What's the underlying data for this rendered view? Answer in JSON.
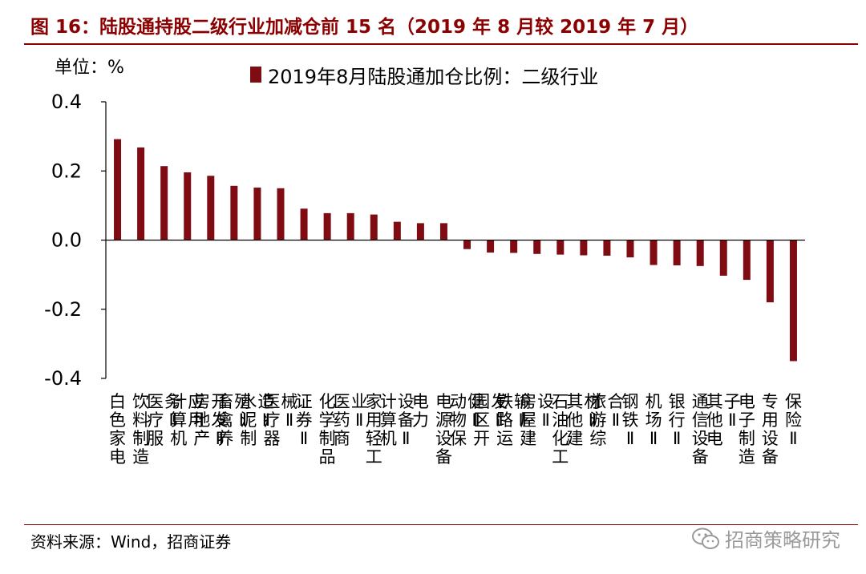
{
  "figure": {
    "title": "图 16：陆股通持股二级行业加减仓前 15 名（2019 年 8 月较 2019 年 7 月）",
    "unit_label": "单位：%",
    "source": "资料来源：Wind，招商证券",
    "watermark": "招商策略研究"
  },
  "colors": {
    "bar": "#7f0c13",
    "title": "#8b0000",
    "axis": "#000000"
  },
  "icons": {
    "watermark": "wechat-icon"
  },
  "chart_data": {
    "type": "bar",
    "title": "",
    "xlabel": "",
    "ylabel": "单位：%",
    "ylim": [
      -0.4,
      0.4
    ],
    "yticks": [
      -0.4,
      -0.2,
      0.0,
      0.2,
      0.4
    ],
    "ytick_labels": [
      "-0.4",
      "-0.2",
      "0.0",
      "0.2",
      "0.4"
    ],
    "grid": false,
    "legend_position": "top-center",
    "categories": [
      "白色家电",
      "饮料制造",
      "医疗服务Ⅱ",
      "计算机应用",
      "房地产开发Ⅱ",
      "畜禽养殖Ⅱ",
      "水泥制造Ⅱ",
      "医疗器械Ⅱ",
      "证券Ⅱ",
      "化学制品",
      "医药商业Ⅱ",
      "家用轻工",
      "计算机设备Ⅱ",
      "电力",
      "电源设备",
      "动物保健Ⅱ",
      "园区开发Ⅱ",
      "铁路运输Ⅱ",
      "房屋建设Ⅱ",
      "石油化工",
      "其他建材Ⅱ",
      "旅游综合Ⅱ",
      "钢铁Ⅱ",
      "机场Ⅱ",
      "银行Ⅱ",
      "通信设备",
      "其他电子Ⅱ",
      "电子制造",
      "专用设备",
      "保险Ⅱ"
    ],
    "series": [
      {
        "name": "2019年8月陆股通加仓比例：二级行业",
        "values": [
          0.292,
          0.268,
          0.214,
          0.196,
          0.186,
          0.157,
          0.152,
          0.15,
          0.091,
          0.078,
          0.078,
          0.074,
          0.053,
          0.049,
          0.049,
          -0.026,
          -0.036,
          -0.037,
          -0.04,
          -0.042,
          -0.044,
          -0.045,
          -0.05,
          -0.072,
          -0.073,
          -0.075,
          -0.103,
          -0.115,
          -0.18,
          -0.35
        ]
      }
    ]
  }
}
